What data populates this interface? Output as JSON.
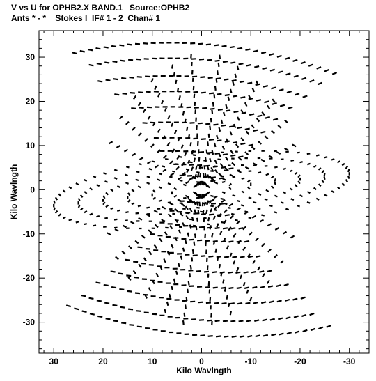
{
  "header": {
    "line1": "V vs U for OPHB2.X BAND.1   Source:OPHB2",
    "line2": "Ants * - *    Stokes I  IF# 1 - 2  Chan# 1"
  },
  "chart_data": {
    "type": "scatter",
    "xlabel": "Kilo Wavlngth",
    "ylabel": "Kilo Wavlngth",
    "xlim": [
      33,
      -34
    ],
    "ylim": [
      -37,
      36
    ],
    "x_ticks": [
      30,
      20,
      10,
      0,
      -10,
      -20,
      -30
    ],
    "y_ticks": [
      30,
      20,
      10,
      0,
      -10,
      -20,
      -30
    ],
    "tracks": {
      "arc_v": [
        33,
        29.5,
        25.5,
        22,
        18.5,
        15,
        11.5,
        8.5,
        5.5,
        3
      ],
      "arc_half_width": [
        27,
        24,
        21,
        18,
        15,
        12.5,
        10,
        8,
        6,
        4
      ],
      "arc_curvature": 0.0062,
      "spoke_angles_deg": [
        -62,
        -48,
        -36,
        -25,
        -15,
        -7,
        4,
        12,
        22,
        33,
        45,
        60
      ],
      "spoke_lengths": [
        22,
        24,
        25,
        27,
        30,
        32,
        32,
        30,
        27,
        25,
        24,
        22
      ]
    },
    "ellipses": [
      {
        "ru": 30,
        "rv": 8
      },
      {
        "ru": 25,
        "rv": 6.5
      },
      {
        "ru": 20,
        "rv": 5
      },
      {
        "ru": 15,
        "rv": 4
      },
      {
        "ru": 10,
        "rv": 2.8
      },
      {
        "ru": 6,
        "rv": 1.8
      }
    ],
    "point_color": "#000000"
  }
}
